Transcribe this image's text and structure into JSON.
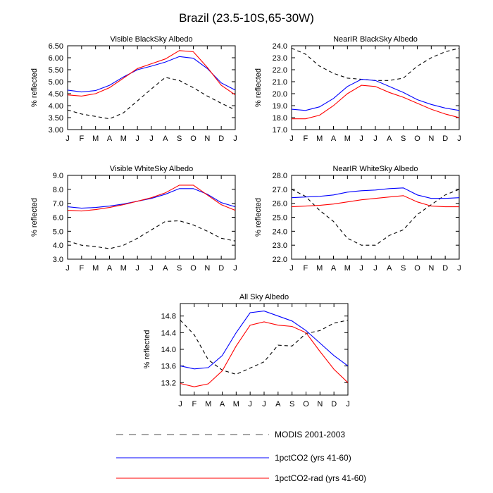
{
  "figure": {
    "title": "Brazil (23.5-10S,65-30W)"
  },
  "months": [
    "J",
    "F",
    "M",
    "A",
    "M",
    "J",
    "J",
    "A",
    "S",
    "O",
    "N",
    "D",
    "J"
  ],
  "legend": [
    {
      "label": "MODIS 2001-2003",
      "color": "#000000",
      "dash": "dashed"
    },
    {
      "label": "1pctCO2 (yrs 41-60)",
      "color": "#0000ff",
      "dash": "solid"
    },
    {
      "label": "1pctCO2-rad (yrs 41-60)",
      "color": "#ff0000",
      "dash": "solid"
    }
  ],
  "chart_data": [
    {
      "type": "line",
      "title": "Visible BlackSky Albedo",
      "ylabel": "% reflected",
      "categories": [
        "J",
        "F",
        "M",
        "A",
        "M",
        "J",
        "J",
        "A",
        "S",
        "O",
        "N",
        "D",
        "J"
      ],
      "ylim": [
        3.0,
        6.5
      ],
      "yticks": [
        "3.00",
        "3.50",
        "4.00",
        "4.50",
        "5.00",
        "5.50",
        "6.00",
        "6.50"
      ],
      "series": [
        {
          "name": "MODIS 2001-2003",
          "color": "#000000",
          "dashed": true,
          "values": [
            3.82,
            3.65,
            3.55,
            3.45,
            3.7,
            4.2,
            4.7,
            5.18,
            5.05,
            4.75,
            4.4,
            4.1,
            3.82
          ]
        },
        {
          "name": "1pctCO2 (yrs 41-60)",
          "color": "#0000ff",
          "dashed": false,
          "values": [
            4.65,
            4.57,
            4.63,
            4.85,
            5.2,
            5.5,
            5.65,
            5.82,
            6.05,
            5.98,
            5.55,
            4.95,
            4.65
          ]
        },
        {
          "name": "1pctCO2-rad (yrs 41-60)",
          "color": "#ff0000",
          "dashed": false,
          "values": [
            4.45,
            4.4,
            4.5,
            4.75,
            5.15,
            5.55,
            5.75,
            5.95,
            6.3,
            6.25,
            5.6,
            4.85,
            4.45
          ]
        }
      ]
    },
    {
      "type": "line",
      "title": "NearIR BlackSky Albedo",
      "ylabel": "% reflected",
      "categories": [
        "J",
        "F",
        "M",
        "A",
        "M",
        "J",
        "J",
        "A",
        "S",
        "O",
        "N",
        "D",
        "J"
      ],
      "ylim": [
        17.0,
        24.0
      ],
      "yticks": [
        "17.0",
        "18.0",
        "19.0",
        "20.0",
        "21.0",
        "22.0",
        "23.0",
        "24.0"
      ],
      "series": [
        {
          "name": "MODIS 2001-2003",
          "color": "#000000",
          "dashed": true,
          "values": [
            23.8,
            23.3,
            22.3,
            21.7,
            21.3,
            21.2,
            21.1,
            21.1,
            21.3,
            22.3,
            23.0,
            23.5,
            23.8
          ]
        },
        {
          "name": "1pctCO2 (yrs 41-60)",
          "color": "#0000ff",
          "dashed": false,
          "values": [
            18.7,
            18.6,
            18.9,
            19.6,
            20.6,
            21.2,
            21.1,
            20.6,
            20.1,
            19.5,
            19.1,
            18.8,
            18.6
          ]
        },
        {
          "name": "1pctCO2-rad (yrs 41-60)",
          "color": "#ff0000",
          "dashed": false,
          "values": [
            17.9,
            17.9,
            18.2,
            19.0,
            20.0,
            20.7,
            20.6,
            20.1,
            19.7,
            19.2,
            18.7,
            18.3,
            18.0
          ]
        }
      ]
    },
    {
      "type": "line",
      "title": "Visible WhiteSky Albedo",
      "ylabel": "% reflected",
      "categories": [
        "J",
        "F",
        "M",
        "A",
        "M",
        "J",
        "J",
        "A",
        "S",
        "O",
        "N",
        "D",
        "J"
      ],
      "ylim": [
        3.0,
        9.0
      ],
      "yticks": [
        "3.0",
        "4.0",
        "5.0",
        "6.0",
        "7.0",
        "8.0",
        "9.0"
      ],
      "series": [
        {
          "name": "MODIS 2001-2003",
          "color": "#000000",
          "dashed": true,
          "values": [
            4.3,
            4.0,
            3.9,
            3.75,
            4.0,
            4.5,
            5.1,
            5.7,
            5.75,
            5.45,
            5.0,
            4.5,
            4.3
          ]
        },
        {
          "name": "1pctCO2 (yrs 41-60)",
          "color": "#0000ff",
          "dashed": false,
          "values": [
            6.75,
            6.65,
            6.7,
            6.8,
            6.95,
            7.15,
            7.35,
            7.65,
            8.05,
            8.05,
            7.65,
            7.05,
            6.75
          ]
        },
        {
          "name": "1pctCO2-rad (yrs 41-60)",
          "color": "#ff0000",
          "dashed": false,
          "values": [
            6.5,
            6.45,
            6.55,
            6.7,
            6.9,
            7.15,
            7.4,
            7.75,
            8.3,
            8.3,
            7.6,
            6.9,
            6.5
          ]
        }
      ]
    },
    {
      "type": "line",
      "title": "NearIR WhiteSky Albedo",
      "ylabel": "% reflected",
      "categories": [
        "J",
        "F",
        "M",
        "A",
        "M",
        "J",
        "J",
        "A",
        "S",
        "O",
        "N",
        "D",
        "J"
      ],
      "ylim": [
        22.0,
        28.0
      ],
      "yticks": [
        "22.0",
        "23.0",
        "24.0",
        "25.0",
        "26.0",
        "27.0",
        "28.0"
      ],
      "series": [
        {
          "name": "MODIS 2001-2003",
          "color": "#000000",
          "dashed": true,
          "values": [
            27.0,
            26.5,
            25.5,
            24.7,
            23.5,
            23.0,
            23.0,
            23.7,
            24.1,
            25.2,
            25.9,
            26.6,
            27.0
          ]
        },
        {
          "name": "1pctCO2 (yrs 41-60)",
          "color": "#0000ff",
          "dashed": false,
          "values": [
            26.4,
            26.45,
            26.5,
            26.6,
            26.8,
            26.9,
            26.95,
            27.05,
            27.1,
            26.6,
            26.35,
            26.35,
            26.4
          ]
        },
        {
          "name": "1pctCO2-rad (yrs 41-60)",
          "color": "#ff0000",
          "dashed": false,
          "values": [
            25.75,
            25.8,
            25.85,
            25.95,
            26.1,
            26.25,
            26.35,
            26.45,
            26.55,
            26.1,
            25.8,
            25.75,
            25.75
          ]
        }
      ]
    },
    {
      "type": "line",
      "title": "All Sky Albedo",
      "ylabel": "% reflected",
      "categories": [
        "J",
        "F",
        "M",
        "A",
        "M",
        "J",
        "J",
        "A",
        "S",
        "O",
        "N",
        "D",
        "J"
      ],
      "ylim": [
        12.9,
        15.1
      ],
      "yticks": [
        "13.2",
        "13.6",
        "14.0",
        "14.4",
        "14.8"
      ],
      "series": [
        {
          "name": "MODIS 2001-2003",
          "color": "#000000",
          "dashed": true,
          "values": [
            14.7,
            14.35,
            13.75,
            13.5,
            13.4,
            13.55,
            13.7,
            14.1,
            14.08,
            14.38,
            14.45,
            14.63,
            14.7
          ]
        },
        {
          "name": "1pctCO2 (yrs 41-60)",
          "color": "#0000ff",
          "dashed": false,
          "values": [
            13.6,
            13.53,
            13.56,
            13.85,
            14.4,
            14.88,
            14.92,
            14.8,
            14.68,
            14.45,
            14.15,
            13.85,
            13.6
          ]
        },
        {
          "name": "1pctCO2-rad (yrs 41-60)",
          "color": "#ff0000",
          "dashed": false,
          "values": [
            13.18,
            13.1,
            13.17,
            13.48,
            14.08,
            14.58,
            14.66,
            14.58,
            14.55,
            14.4,
            13.95,
            13.52,
            13.2
          ]
        }
      ]
    }
  ]
}
